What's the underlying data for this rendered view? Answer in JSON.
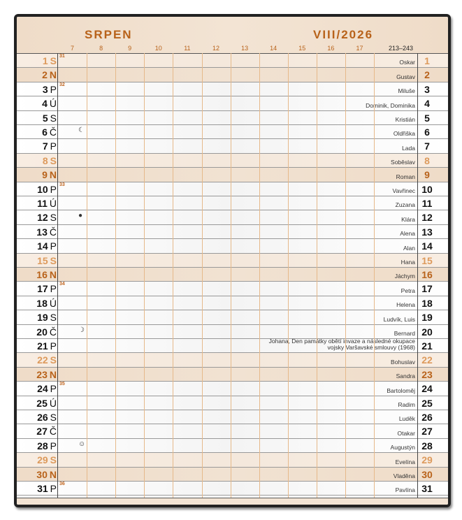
{
  "header": {
    "month": "SRPEN",
    "period": "VIII/2026",
    "day_range": "213–243",
    "hours": [
      "7",
      "8",
      "9",
      "10",
      "11",
      "12",
      "13",
      "14",
      "15",
      "16",
      "17"
    ]
  },
  "colors": {
    "accent": "#b8621a",
    "saturday": "#dd9a5c",
    "sunday": "#b8621a"
  },
  "days": [
    {
      "d": "1",
      "wd": "S",
      "type": "sat",
      "name": "Oskar",
      "week": "31"
    },
    {
      "d": "2",
      "wd": "N",
      "type": "sun",
      "name": "Gustav"
    },
    {
      "d": "3",
      "wd": "P",
      "name": "Miluše",
      "week": "32"
    },
    {
      "d": "4",
      "wd": "Ú",
      "name": "Dominik, Dominika"
    },
    {
      "d": "5",
      "wd": "S",
      "name": "Kristián"
    },
    {
      "d": "6",
      "wd": "Č",
      "name": "Oldřiška",
      "moon": "☾",
      "moon_icon": "last-quarter-moon-icon"
    },
    {
      "d": "7",
      "wd": "P",
      "name": "Lada"
    },
    {
      "d": "8",
      "wd": "S",
      "type": "sat",
      "name": "Soběslav"
    },
    {
      "d": "9",
      "wd": "N",
      "type": "sun",
      "name": "Roman"
    },
    {
      "d": "10",
      "wd": "P",
      "name": "Vavřinec",
      "week": "33"
    },
    {
      "d": "11",
      "wd": "Ú",
      "name": "Zuzana"
    },
    {
      "d": "12",
      "wd": "S",
      "name": "Klára",
      "moon": "●",
      "moon_icon": "new-moon-icon"
    },
    {
      "d": "13",
      "wd": "Č",
      "name": "Alena"
    },
    {
      "d": "14",
      "wd": "P",
      "name": "Alan"
    },
    {
      "d": "15",
      "wd": "S",
      "type": "sat",
      "name": "Hana"
    },
    {
      "d": "16",
      "wd": "N",
      "type": "sun",
      "name": "Jáchym"
    },
    {
      "d": "17",
      "wd": "P",
      "name": "Petra",
      "week": "34"
    },
    {
      "d": "18",
      "wd": "Ú",
      "name": "Helena"
    },
    {
      "d": "19",
      "wd": "S",
      "name": "Ludvík, Luis"
    },
    {
      "d": "20",
      "wd": "Č",
      "name": "Bernard",
      "moon": "☽",
      "moon_icon": "first-quarter-moon-icon"
    },
    {
      "d": "21",
      "wd": "P",
      "name": "Johana, Den památky obětí invaze a následné okupace vojsky Varšavské smlouvy (1968)"
    },
    {
      "d": "22",
      "wd": "S",
      "type": "sat",
      "name": "Bohuslav"
    },
    {
      "d": "23",
      "wd": "N",
      "type": "sun",
      "name": "Sandra"
    },
    {
      "d": "24",
      "wd": "P",
      "name": "Bartoloměj",
      "week": "35"
    },
    {
      "d": "25",
      "wd": "Ú",
      "name": "Radim"
    },
    {
      "d": "26",
      "wd": "S",
      "name": "Luděk"
    },
    {
      "d": "27",
      "wd": "Č",
      "name": "Otakar"
    },
    {
      "d": "28",
      "wd": "P",
      "name": "Augustýn",
      "moon": "☺",
      "moon_icon": "full-moon-icon"
    },
    {
      "d": "29",
      "wd": "S",
      "type": "sat",
      "name": "Evelína"
    },
    {
      "d": "30",
      "wd": "N",
      "type": "sun",
      "name": "Vladěna"
    },
    {
      "d": "31",
      "wd": "P",
      "name": "Pavlína",
      "week": "36"
    }
  ]
}
